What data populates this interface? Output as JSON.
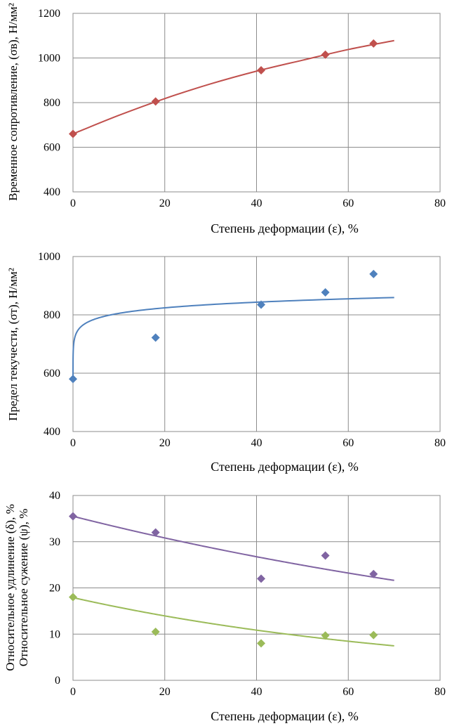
{
  "chart_data": [
    {
      "type": "scatter",
      "xlabel": "Степень деформации (ε), %",
      "ylabel": "Временное сопротивление, (σв), Н/мм²",
      "xlim": [
        0,
        80
      ],
      "ylim": [
        400,
        1200
      ],
      "xticks": [
        0,
        20,
        40,
        60,
        80
      ],
      "yticks": [
        400,
        600,
        800,
        1000,
        1200
      ],
      "grid": true,
      "series": [
        {
          "color": "#c0504d",
          "marker": "diamond",
          "x": [
            0,
            18,
            41,
            55,
            65.5
          ],
          "y": [
            660,
            805,
            945,
            1015,
            1065
          ],
          "trend": {
            "kind": "smooth",
            "x": [
              0,
              10,
              20,
              30,
              40,
              50,
              60,
              70
            ],
            "y": [
              660,
              743,
              818,
              884,
              941,
              990,
              1038,
              1078
            ]
          }
        }
      ]
    },
    {
      "type": "scatter",
      "xlabel": "Степень деформации (ε), %",
      "ylabel": "Предел текучести, (σт), Н/мм²",
      "xlim": [
        0,
        80
      ],
      "ylim": [
        400,
        1000
      ],
      "xticks": [
        0,
        20,
        40,
        60,
        80
      ],
      "yticks": [
        400,
        600,
        800,
        1000
      ],
      "grid": true,
      "series": [
        {
          "color": "#4f81bd",
          "marker": "diamond",
          "x": [
            0,
            18,
            41,
            55,
            65.5
          ],
          "y": [
            580,
            722,
            835,
            877,
            940
          ],
          "trend": {
            "kind": "power",
            "a": 745.4,
            "b": 0.0335,
            "x0": 0.01,
            "x1": 70
          }
        }
      ]
    },
    {
      "type": "scatter",
      "xlabel": "Степень деформации (ε), %",
      "ylabel": "Относительное удлинение (δ), %",
      "ylabel2": "Относительное сужение (ψ), %",
      "xlim": [
        0,
        80
      ],
      "ylim": [
        0,
        40
      ],
      "xticks": [
        0,
        20,
        40,
        60,
        80
      ],
      "yticks": [
        0,
        10,
        20,
        30,
        40
      ],
      "grid": true,
      "series": [
        {
          "color": "#8064a2",
          "marker": "diamond",
          "x": [
            0,
            18,
            41,
            55,
            65.5
          ],
          "y": [
            35.5,
            32,
            22,
            27,
            23
          ],
          "trend": {
            "kind": "exp",
            "a": 35.5,
            "b": -0.00708,
            "x0": 0,
            "x1": 70
          }
        },
        {
          "color": "#9bbb59",
          "marker": "diamond",
          "x": [
            0,
            18,
            41,
            55,
            65.5
          ],
          "y": [
            18,
            10.5,
            8,
            9.7,
            9.8
          ],
          "trend": {
            "kind": "exp",
            "a": 17.9,
            "b": -0.0125,
            "x0": 0,
            "x1": 70
          }
        }
      ]
    }
  ]
}
